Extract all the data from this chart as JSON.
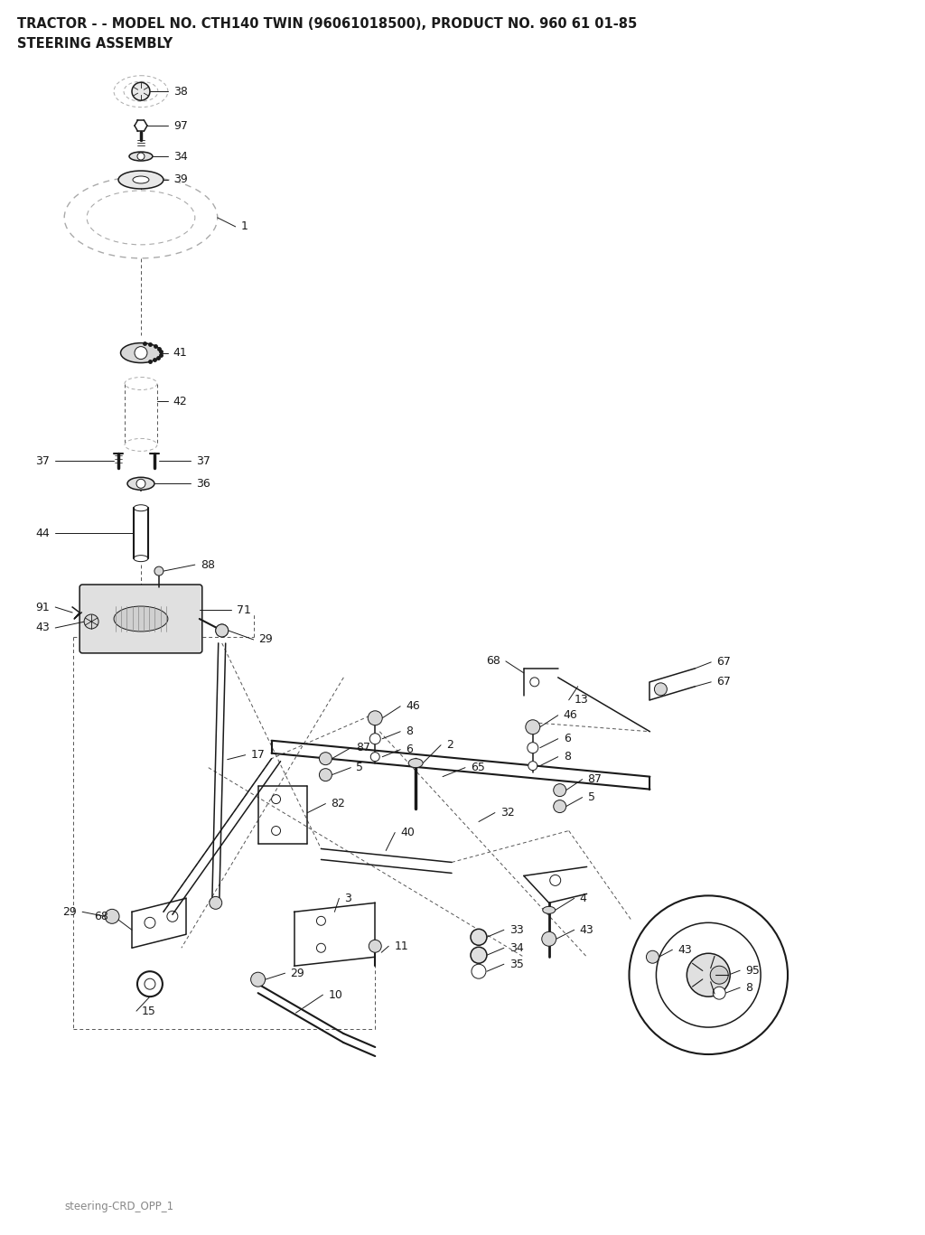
{
  "title_line1": "TRACTOR - - MODEL NO. CTH140 TWIN (96061018500), PRODUCT NO. 960 61 01-85",
  "title_line2": "STEERING ASSEMBLY",
  "footer": "steering-CRD_OPP_1",
  "bg_color": "#ffffff",
  "fig_width": 10.24,
  "fig_height": 13.67,
  "dpi": 100,
  "title_fontsize": 10.5,
  "footer_fontsize": 8.5,
  "label_fontsize": 9
}
